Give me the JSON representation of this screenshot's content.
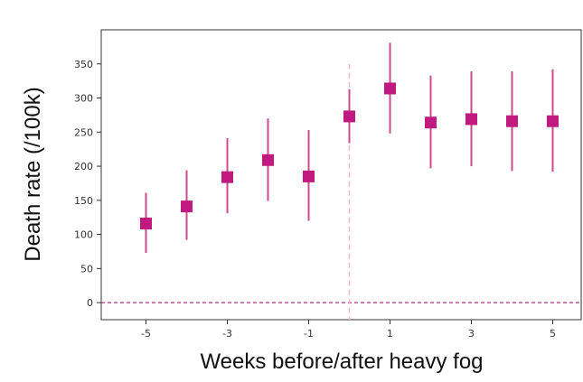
{
  "chart_data": {
    "type": "scatter",
    "xlabel": "Weeks before/after heavy fog",
    "ylabel": "Death rate (/100k)",
    "x_ticks": [
      -5,
      -3,
      -1,
      1,
      3,
      5
    ],
    "y_ticks": [
      0,
      50,
      100,
      150,
      200,
      250,
      300,
      350
    ],
    "xlim": [
      -6.1,
      5.7
    ],
    "ylim": [
      -25,
      400
    ],
    "grid": false,
    "event_line_x": 0,
    "baseline_y": 0,
    "series": [
      {
        "x": [
          -5,
          -4,
          -3,
          -2,
          -1,
          0,
          1,
          2,
          3,
          4,
          5
        ],
        "y": [
          116,
          141,
          184,
          209,
          185,
          273,
          314,
          264,
          269,
          266,
          266
        ],
        "error_low": [
          73,
          92,
          131,
          149,
          120,
          234,
          248,
          197,
          200,
          193,
          192
        ],
        "error_high": [
          161,
          194,
          241,
          270,
          253,
          313,
          381,
          333,
          339,
          339,
          342
        ]
      }
    ],
    "colors": {
      "marker": "#c0197f",
      "errorbar": "#cc4a8e",
      "event_line": "#f2b8d0",
      "baseline": "#b0307e",
      "axes": "#333333"
    }
  }
}
